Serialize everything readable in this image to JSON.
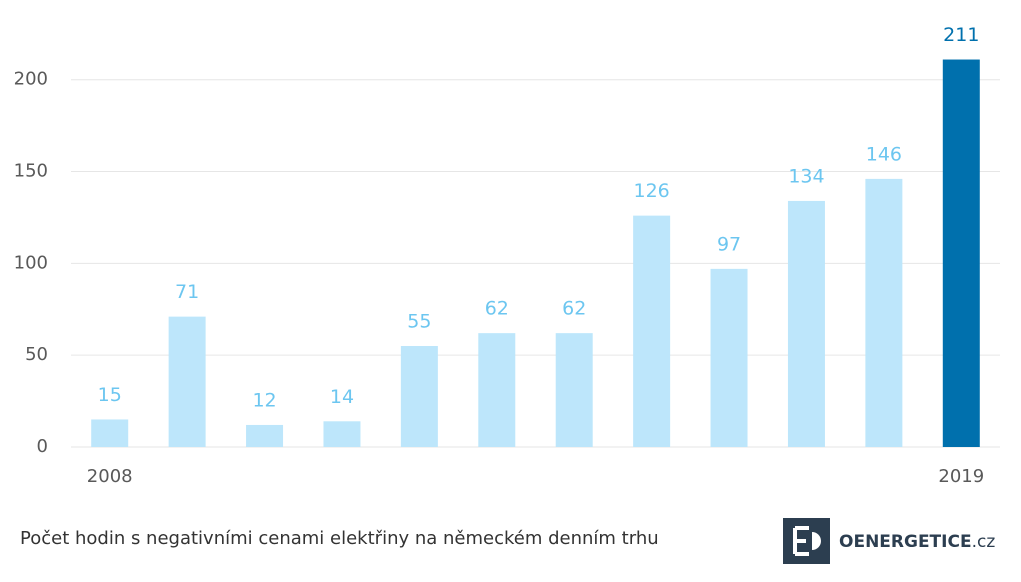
{
  "chart_data": {
    "type": "bar",
    "categories": [
      "2008",
      null,
      null,
      null,
      null,
      null,
      null,
      null,
      null,
      null,
      null,
      "2019"
    ],
    "values": [
      15,
      71,
      12,
      14,
      55,
      62,
      62,
      126,
      97,
      134,
      146,
      211
    ],
    "colors": [
      "#bde6fb",
      "#bde6fb",
      "#bde6fb",
      "#bde6fb",
      "#bde6fb",
      "#bde6fb",
      "#bde6fb",
      "#bde6fb",
      "#bde6fb",
      "#bde6fb",
      "#bde6fb",
      "#0070ad"
    ],
    "label_colors": [
      "#6cc6f0",
      "#6cc6f0",
      "#6cc6f0",
      "#6cc6f0",
      "#6cc6f0",
      "#6cc6f0",
      "#6cc6f0",
      "#6cc6f0",
      "#6cc6f0",
      "#6cc6f0",
      "#6cc6f0",
      "#0070ad"
    ],
    "ylim": [
      0,
      220
    ],
    "yticks": [
      0,
      50,
      100,
      150,
      200
    ],
    "grid": true,
    "caption": "Počet hodin s negativními cenami elektřiny na německém denním trhu",
    "logo_text": "OENERGETICE",
    "logo_suffix": ".cz"
  }
}
